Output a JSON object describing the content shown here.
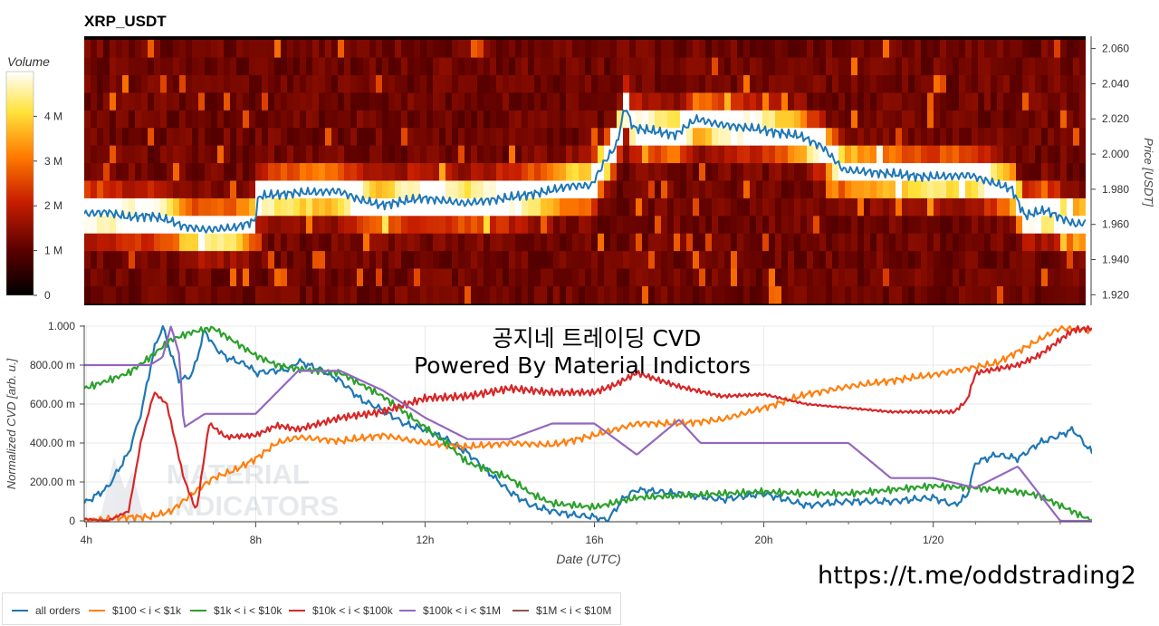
{
  "chart_data": [
    {
      "type": "heatmap",
      "title": "XRP_USDT",
      "colorbar_title": "Volume",
      "colorbar_ticks": [
        "0",
        "1 M",
        "2 M",
        "3 M",
        "4 M"
      ],
      "colorbar_range": [
        0,
        5000000
      ],
      "ylabel": "Price [USDT]",
      "ylim": [
        1.914,
        2.067
      ],
      "y_ticks": [
        {
          "value": 1.92,
          "label": "1.920"
        },
        {
          "value": 1.94,
          "label": "1.940"
        },
        {
          "value": 1.96,
          "label": "1.960"
        },
        {
          "value": 1.98,
          "label": "1.980"
        },
        {
          "value": 2.0,
          "label": "2.000"
        },
        {
          "value": 2.02,
          "label": "2.020"
        },
        {
          "value": 2.04,
          "label": "2.040"
        },
        {
          "value": 2.06,
          "label": "2.060"
        }
      ],
      "xlim_hours": [
        3.95,
        27.75
      ],
      "series": [
        {
          "name": "price",
          "hours": [
            3.95,
            4.5,
            5.0,
            5.5,
            6.0,
            6.3,
            6.8,
            7.5,
            8.0,
            8.1,
            9.0,
            10.0,
            10.5,
            11.0,
            12.0,
            13.0,
            14.0,
            15.0,
            15.5,
            16.0,
            16.3,
            16.6,
            16.8,
            17.0,
            17.5,
            18.0,
            18.5,
            19.0,
            20.0,
            21.0,
            21.5,
            22.0,
            23.0,
            24.0,
            25.0,
            25.5,
            26.0,
            26.3,
            26.8,
            27.5,
            27.75
          ],
          "values": [
            1.966,
            1.967,
            1.964,
            1.965,
            1.962,
            1.959,
            1.957,
            1.958,
            1.962,
            1.976,
            1.978,
            1.979,
            1.974,
            1.971,
            1.975,
            1.972,
            1.975,
            1.979,
            1.982,
            1.982,
            1.995,
            2.005,
            2.027,
            2.015,
            2.013,
            2.011,
            2.02,
            2.017,
            2.014,
            2.01,
            2.004,
            1.991,
            1.989,
            1.987,
            1.988,
            1.984,
            1.98,
            1.965,
            1.968,
            1.96,
            1.961
          ]
        }
      ]
    },
    {
      "type": "line",
      "title": "공지네 트레이딩 CVD",
      "subtitle": "Powered By Material Indictors",
      "xlabel": "Date (UTC)",
      "ylabel": "Normalized CVD [arb. u.]",
      "x_ticks": [
        {
          "hour": 4,
          "label": "4h"
        },
        {
          "hour": 8,
          "label": "8h"
        },
        {
          "hour": 12,
          "label": "12h"
        },
        {
          "hour": 16,
          "label": "16h"
        },
        {
          "hour": 20,
          "label": "20h"
        },
        {
          "hour": 24,
          "label": "1/20"
        }
      ],
      "y_ticks": [
        {
          "value": 0,
          "label": "0"
        },
        {
          "value": 0.2,
          "label": "200.00 m"
        },
        {
          "value": 0.4,
          "label": "400.00 m"
        },
        {
          "value": 0.6,
          "label": "600.00 m"
        },
        {
          "value": 0.8,
          "label": "800.00 m"
        },
        {
          "value": 1.0,
          "label": "1.000"
        }
      ],
      "ylim": [
        0,
        1.0
      ],
      "xlim_hours": [
        3.95,
        27.75
      ],
      "grid": true,
      "legend_position": "bottom",
      "series": [
        {
          "name": "all orders",
          "color": "#1f77b4",
          "hours": [
            3.95,
            4.5,
            5.0,
            5.3,
            5.6,
            5.8,
            6.2,
            6.5,
            6.8,
            7.0,
            7.3,
            7.8,
            8.0,
            8.8,
            9.0,
            9.5,
            10.0,
            10.5,
            11.0,
            11.5,
            12.0,
            12.5,
            13.0,
            13.5,
            14.0,
            14.5,
            15.0,
            15.5,
            16.0,
            16.3,
            16.7,
            17.0,
            17.5,
            18.0,
            19.0,
            20.0,
            21.0,
            22.0,
            23.0,
            24.0,
            24.5,
            24.8,
            25.0,
            25.5,
            26.0,
            26.5,
            27.0,
            27.3,
            27.75
          ],
          "values": [
            0.09,
            0.17,
            0.35,
            0.56,
            0.88,
            1.0,
            0.72,
            0.75,
            0.98,
            0.9,
            0.84,
            0.8,
            0.76,
            0.78,
            0.82,
            0.78,
            0.72,
            0.62,
            0.57,
            0.5,
            0.47,
            0.42,
            0.35,
            0.25,
            0.15,
            0.08,
            0.05,
            0.03,
            0.02,
            0.0,
            0.12,
            0.16,
            0.15,
            0.14,
            0.11,
            0.14,
            0.08,
            0.1,
            0.1,
            0.12,
            0.08,
            0.13,
            0.3,
            0.34,
            0.32,
            0.4,
            0.44,
            0.47,
            0.35
          ]
        },
        {
          "name": "$100 < i < $1k",
          "color": "#ff7f0e",
          "hours": [
            3.95,
            4.5,
            5.0,
            5.5,
            6.0,
            6.5,
            7.0,
            7.5,
            8.0,
            8.5,
            9.0,
            10.0,
            11.0,
            12.0,
            13.0,
            14.0,
            15.0,
            16.0,
            16.5,
            17.0,
            18.0,
            19.0,
            20.0,
            21.0,
            22.0,
            23.0,
            24.0,
            25.0,
            25.5,
            26.0,
            26.5,
            27.0,
            27.75
          ],
          "values": [
            0.0,
            0.01,
            0.02,
            0.02,
            0.05,
            0.14,
            0.22,
            0.26,
            0.32,
            0.4,
            0.43,
            0.41,
            0.44,
            0.4,
            0.38,
            0.4,
            0.39,
            0.44,
            0.47,
            0.5,
            0.5,
            0.52,
            0.58,
            0.65,
            0.69,
            0.72,
            0.75,
            0.79,
            0.81,
            0.87,
            0.93,
            0.99,
            0.98
          ]
        },
        {
          "name": "$1k < i < $10k",
          "color": "#2ca02c",
          "hours": [
            3.95,
            4.5,
            5.0,
            5.5,
            6.0,
            6.5,
            7.0,
            7.5,
            8.0,
            8.5,
            9.0,
            10.0,
            11.0,
            11.5,
            12.0,
            12.5,
            13.0,
            13.5,
            14.0,
            14.5,
            15.0,
            15.5,
            16.0,
            17.0,
            18.0,
            19.0,
            20.0,
            21.0,
            22.0,
            23.0,
            24.0,
            25.0,
            26.0,
            26.5,
            27.0,
            27.75
          ],
          "values": [
            0.68,
            0.72,
            0.76,
            0.84,
            0.93,
            0.97,
            0.99,
            0.92,
            0.85,
            0.8,
            0.78,
            0.76,
            0.64,
            0.56,
            0.48,
            0.4,
            0.3,
            0.26,
            0.22,
            0.14,
            0.09,
            0.08,
            0.07,
            0.12,
            0.13,
            0.14,
            0.15,
            0.14,
            0.14,
            0.16,
            0.18,
            0.17,
            0.15,
            0.13,
            0.08,
            0.0
          ]
        },
        {
          "name": "$10k < i < $100k",
          "color": "#d62728",
          "hours": [
            3.95,
            4.5,
            5.0,
            5.3,
            5.6,
            5.9,
            6.3,
            6.6,
            6.9,
            7.3,
            8.0,
            8.5,
            9.0,
            10.0,
            11.0,
            12.0,
            13.0,
            14.0,
            15.0,
            16.0,
            16.5,
            17.0,
            18.0,
            19.0,
            20.0,
            21.0,
            22.0,
            23.0,
            24.0,
            24.5,
            24.8,
            25.0,
            25.5,
            26.0,
            26.5,
            27.0,
            27.3,
            27.75
          ],
          "values": [
            0.01,
            0.0,
            0.05,
            0.42,
            0.66,
            0.6,
            0.22,
            0.05,
            0.5,
            0.43,
            0.44,
            0.49,
            0.47,
            0.53,
            0.56,
            0.63,
            0.64,
            0.68,
            0.66,
            0.66,
            0.7,
            0.76,
            0.69,
            0.64,
            0.65,
            0.6,
            0.58,
            0.56,
            0.56,
            0.56,
            0.62,
            0.76,
            0.78,
            0.8,
            0.85,
            0.93,
            0.98,
            0.99
          ]
        },
        {
          "name": "$100k < i < $1M",
          "color": "#9467bd",
          "hours": [
            3.95,
            5.5,
            5.8,
            6.0,
            6.2,
            6.3,
            6.8,
            8.0,
            9.0,
            10.0,
            11.0,
            12.0,
            13.0,
            14.0,
            15.0,
            16.0,
            17.0,
            18.0,
            18.5,
            19.0,
            20.0,
            21.0,
            22.0,
            23.0,
            24.0,
            25.0,
            26.0,
            27.0,
            27.75
          ],
          "values": [
            0.8,
            0.8,
            0.84,
            1.0,
            0.85,
            0.48,
            0.55,
            0.55,
            0.77,
            0.77,
            0.67,
            0.53,
            0.42,
            0.42,
            0.5,
            0.5,
            0.34,
            0.52,
            0.4,
            0.4,
            0.4,
            0.4,
            0.4,
            0.22,
            0.22,
            0.17,
            0.28,
            0.0,
            0.0
          ]
        },
        {
          "name": "$1M < i < $10M",
          "color": "#8c564b",
          "hours": [],
          "values": []
        }
      ]
    }
  ],
  "watermark": [
    "MATERIAL",
    "INDICATORS"
  ],
  "link_text": "https://t.me/oddstrading2"
}
